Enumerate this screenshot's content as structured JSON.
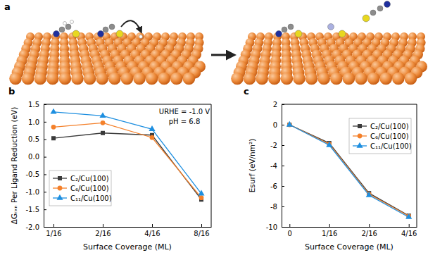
{
  "panel_a": {
    "label": "a"
  },
  "chart_data": [
    {
      "type": "line",
      "title": "b",
      "categories": [
        "1/16",
        "2/16",
        "4/16",
        "8/16"
      ],
      "xlabel": "Surface Coverage (ML)",
      "ylabel": "ΔGᵣₓₙ Per Ligand Reduction (eV)",
      "ylim": [
        -2,
        1.5
      ],
      "yticks": [
        {
          "value": -2,
          "label": "-2.0"
        },
        -1.5,
        {
          "value": -1,
          "label": "-1.0"
        },
        -0.5,
        {
          "value": 0,
          "label": "0.0"
        },
        0.5,
        {
          "value": 1,
          "label": "1.0"
        },
        1.5
      ],
      "annotations": [
        "URHE = -1.0 V",
        "pH = 6.8"
      ],
      "legend": "lower left",
      "grid": false,
      "series": [
        {
          "name": "C₂/Cu(100)",
          "color": "#3a3a3a",
          "marker": "square",
          "line_style": "solid",
          "values": [
            0.53,
            0.68,
            0.62,
            -1.22
          ]
        },
        {
          "name": "C₆/Cu(100)",
          "color": "#f4802a",
          "marker": "circle",
          "line_style": "solid",
          "values": [
            0.85,
            0.97,
            0.55,
            -1.17
          ]
        },
        {
          "name": "C₁₁/Cu(100)",
          "color": "#1e8fe0",
          "marker": "triangle",
          "line_style": "solid",
          "values": [
            1.28,
            1.17,
            0.79,
            -1.05
          ]
        }
      ]
    },
    {
      "type": "line",
      "title": "c",
      "categories": [
        "0",
        "1/16",
        "2/16",
        "4/16"
      ],
      "xlabel": "Surface Coverage (ML)",
      "ylabel": "Esurf (eV/nm²)",
      "ylim": [
        -10,
        2
      ],
      "yticks": [
        -10,
        -8,
        -6,
        -4,
        -2,
        0,
        2
      ],
      "legend": "upper right",
      "grid": false,
      "series": [
        {
          "name": "C₂/Cu(100)",
          "color": "#3a3a3a",
          "marker": "square",
          "line_style": "solid",
          "values": [
            0,
            -1.8,
            -6.7,
            -8.9
          ]
        },
        {
          "name": "C₆/Cu(100)",
          "color": "#f4802a",
          "marker": "circle",
          "line_style": "solid",
          "values": [
            0,
            -1.9,
            -6.8,
            -8.95
          ]
        },
        {
          "name": "C₁₁/Cu(100)",
          "color": "#1e8fe0",
          "marker": "triangle",
          "line_style": "solid",
          "values": [
            0,
            -2.0,
            -6.9,
            -9.05
          ]
        }
      ]
    }
  ]
}
